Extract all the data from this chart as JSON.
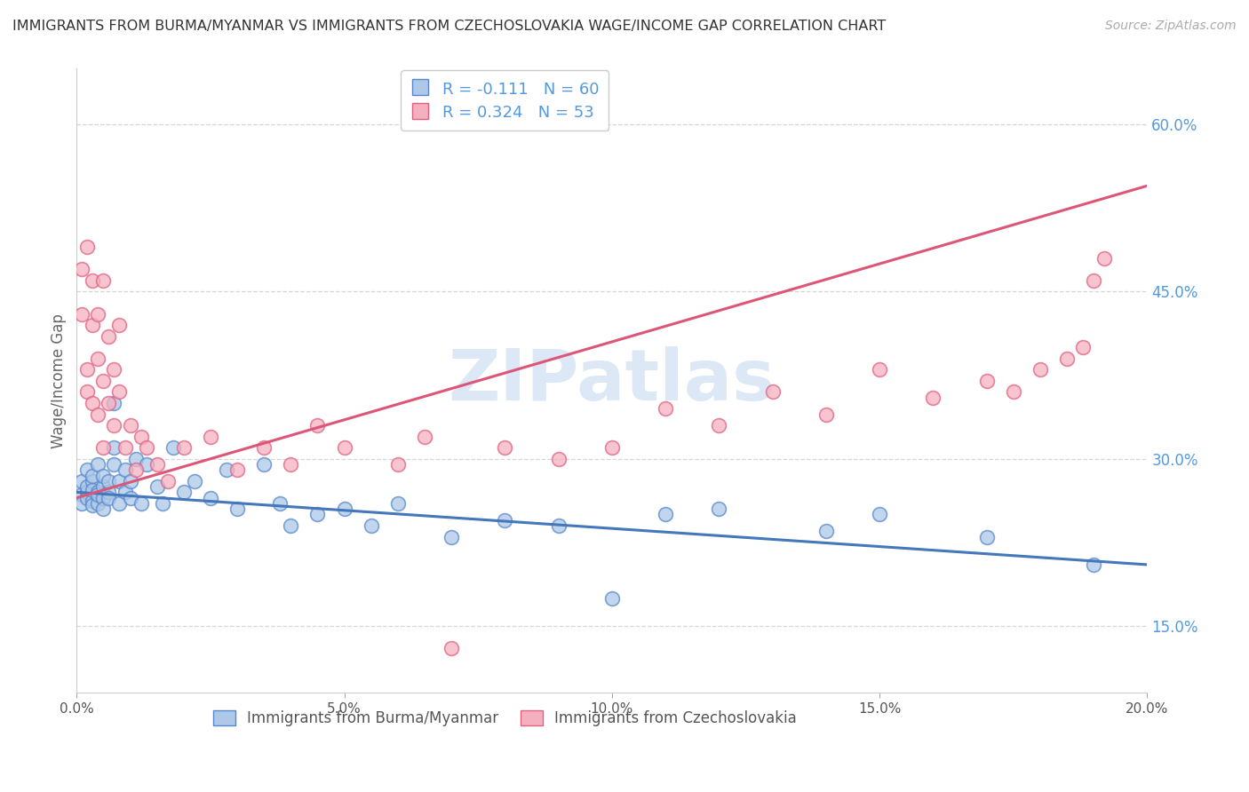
{
  "title": "IMMIGRANTS FROM BURMA/MYANMAR VS IMMIGRANTS FROM CZECHOSLOVAKIA WAGE/INCOME GAP CORRELATION CHART",
  "source": "Source: ZipAtlas.com",
  "ylabel": "Wage/Income Gap",
  "watermark": "ZIPatlas",
  "series1_label": "Immigrants from Burma/Myanmar",
  "series1_color": "#adc8e8",
  "series1_edge_color": "#5588cc",
  "series1_line_color": "#4477bb",
  "series1_R": -0.111,
  "series1_N": 60,
  "series2_label": "Immigrants from Czechoslovakia",
  "series2_color": "#f5b0c0",
  "series2_edge_color": "#e06080",
  "series2_line_color": "#dd5577",
  "series2_R": 0.324,
  "series2_N": 53,
  "xlim": [
    0.0,
    0.2
  ],
  "ylim": [
    0.09,
    0.65
  ],
  "xticks": [
    0.0,
    0.05,
    0.1,
    0.15,
    0.2
  ],
  "xticklabels": [
    "0.0%",
    "5.0%",
    "10.0%",
    "15.0%",
    "20.0%"
  ],
  "yticks_right": [
    0.15,
    0.3,
    0.45,
    0.6
  ],
  "ytick_labels_right": [
    "15.0%",
    "30.0%",
    "45.0%",
    "60.0%"
  ],
  "legend_R_label1": "R = -0.111   N = 60",
  "legend_R_label2": "R = 0.324   N = 53",
  "background_color": "#ffffff",
  "grid_color": "#cccccc",
  "title_color": "#333333",
  "axis_label_color": "#666666",
  "right_tick_color": "#5599dd",
  "blue_trend_y0": 0.27,
  "blue_trend_y1": 0.205,
  "pink_trend_y0": 0.265,
  "pink_trend_y1": 0.545,
  "series1_x": [
    0.001,
    0.001,
    0.001,
    0.002,
    0.002,
    0.002,
    0.002,
    0.003,
    0.003,
    0.003,
    0.003,
    0.003,
    0.004,
    0.004,
    0.004,
    0.004,
    0.005,
    0.005,
    0.005,
    0.005,
    0.006,
    0.006,
    0.006,
    0.007,
    0.007,
    0.007,
    0.008,
    0.008,
    0.009,
    0.009,
    0.01,
    0.01,
    0.011,
    0.012,
    0.013,
    0.015,
    0.016,
    0.018,
    0.02,
    0.022,
    0.025,
    0.028,
    0.03,
    0.035,
    0.038,
    0.04,
    0.045,
    0.05,
    0.055,
    0.06,
    0.07,
    0.08,
    0.09,
    0.1,
    0.11,
    0.12,
    0.14,
    0.15,
    0.17,
    0.19
  ],
  "series1_y": [
    0.268,
    0.26,
    0.28,
    0.27,
    0.29,
    0.265,
    0.275,
    0.28,
    0.262,
    0.272,
    0.258,
    0.285,
    0.27,
    0.295,
    0.26,
    0.268,
    0.275,
    0.265,
    0.285,
    0.255,
    0.27,
    0.28,
    0.265,
    0.35,
    0.295,
    0.31,
    0.26,
    0.28,
    0.27,
    0.29,
    0.265,
    0.28,
    0.3,
    0.26,
    0.295,
    0.275,
    0.26,
    0.31,
    0.27,
    0.28,
    0.265,
    0.29,
    0.255,
    0.295,
    0.26,
    0.24,
    0.25,
    0.255,
    0.24,
    0.26,
    0.23,
    0.245,
    0.24,
    0.175,
    0.25,
    0.255,
    0.235,
    0.25,
    0.23,
    0.205
  ],
  "series2_x": [
    0.001,
    0.001,
    0.002,
    0.002,
    0.002,
    0.003,
    0.003,
    0.003,
    0.004,
    0.004,
    0.004,
    0.005,
    0.005,
    0.005,
    0.006,
    0.006,
    0.007,
    0.007,
    0.008,
    0.008,
    0.009,
    0.01,
    0.011,
    0.012,
    0.013,
    0.015,
    0.017,
    0.02,
    0.025,
    0.03,
    0.035,
    0.04,
    0.045,
    0.05,
    0.06,
    0.065,
    0.07,
    0.08,
    0.09,
    0.1,
    0.11,
    0.12,
    0.13,
    0.14,
    0.15,
    0.16,
    0.17,
    0.175,
    0.18,
    0.185,
    0.188,
    0.19,
    0.192
  ],
  "series2_y": [
    0.47,
    0.43,
    0.49,
    0.38,
    0.36,
    0.46,
    0.42,
    0.35,
    0.43,
    0.39,
    0.34,
    0.46,
    0.37,
    0.31,
    0.41,
    0.35,
    0.38,
    0.33,
    0.42,
    0.36,
    0.31,
    0.33,
    0.29,
    0.32,
    0.31,
    0.295,
    0.28,
    0.31,
    0.32,
    0.29,
    0.31,
    0.295,
    0.33,
    0.31,
    0.295,
    0.32,
    0.13,
    0.31,
    0.3,
    0.31,
    0.345,
    0.33,
    0.36,
    0.34,
    0.38,
    0.355,
    0.37,
    0.36,
    0.38,
    0.39,
    0.4,
    0.46,
    0.48
  ]
}
